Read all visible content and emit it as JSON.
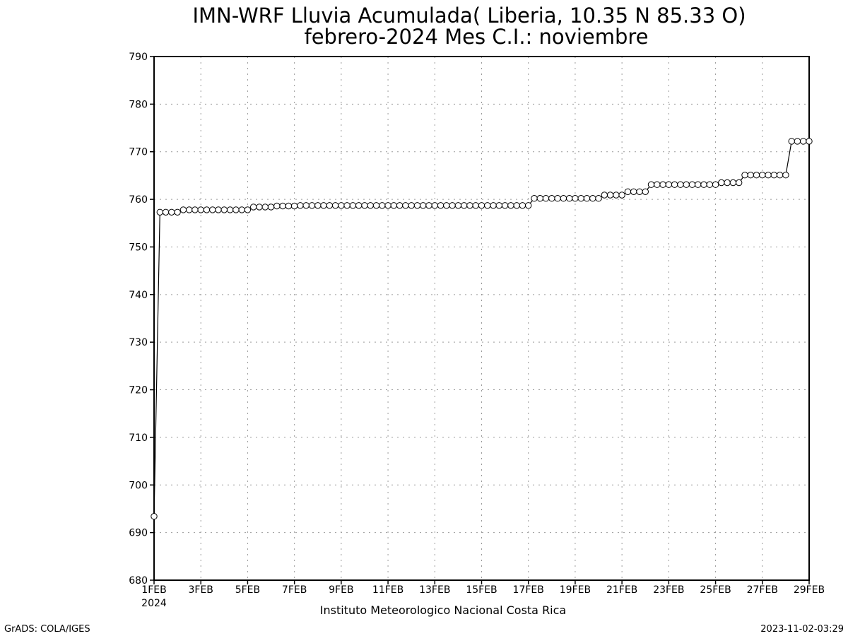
{
  "chart_data": {
    "type": "line",
    "title": "IMN-WRF  Lluvia Acumulada( Liberia, 10.35  N 85.33  O)",
    "subtitle": "febrero-2024 Mes C.I.: noviembre",
    "xlabel": "",
    "ylabel": "",
    "x_range": [
      "2024-02-01",
      "2024-02-29"
    ],
    "ylim": [
      680,
      790
    ],
    "y_ticks": [
      680,
      690,
      700,
      710,
      720,
      730,
      740,
      750,
      760,
      770,
      780,
      790
    ],
    "x_ticks": [
      {
        "date": "2024-02-01",
        "label": "1FEB"
      },
      {
        "date": "2024-02-03",
        "label": "3FEB"
      },
      {
        "date": "2024-02-05",
        "label": "5FEB"
      },
      {
        "date": "2024-02-07",
        "label": "7FEB"
      },
      {
        "date": "2024-02-09",
        "label": "9FEB"
      },
      {
        "date": "2024-02-11",
        "label": "11FEB"
      },
      {
        "date": "2024-02-13",
        "label": "13FEB"
      },
      {
        "date": "2024-02-15",
        "label": "15FEB"
      },
      {
        "date": "2024-02-17",
        "label": "17FEB"
      },
      {
        "date": "2024-02-19",
        "label": "19FEB"
      },
      {
        "date": "2024-02-21",
        "label": "21FEB"
      },
      {
        "date": "2024-02-23",
        "label": "23FEB"
      },
      {
        "date": "2024-02-25",
        "label": "25FEB"
      },
      {
        "date": "2024-02-27",
        "label": "27FEB"
      },
      {
        "date": "2024-02-29",
        "label": "29FEB"
      }
    ],
    "year_label": "2024",
    "grid": true,
    "marker": "open-circle",
    "line_color": "#000000",
    "series": [
      {
        "points": [
          {
            "x": "2024-02-01 00:00",
            "y": 693.4
          },
          {
            "x": "2024-02-01 06:00",
            "y": 757.3
          },
          {
            "x": "2024-02-01 12:00",
            "y": 757.3
          },
          {
            "x": "2024-02-01 18:00",
            "y": 757.3
          },
          {
            "x": "2024-02-02 00:00",
            "y": 757.3
          },
          {
            "x": "2024-02-02 06:00",
            "y": 757.8
          },
          {
            "x": "2024-02-02 12:00",
            "y": 757.8
          },
          {
            "x": "2024-02-02 18:00",
            "y": 757.8
          },
          {
            "x": "2024-02-03 00:00",
            "y": 757.8
          },
          {
            "x": "2024-02-03 06:00",
            "y": 757.8
          },
          {
            "x": "2024-02-03 12:00",
            "y": 757.8
          },
          {
            "x": "2024-02-03 18:00",
            "y": 757.8
          },
          {
            "x": "2024-02-04 00:00",
            "y": 757.8
          },
          {
            "x": "2024-02-04 06:00",
            "y": 757.8
          },
          {
            "x": "2024-02-04 12:00",
            "y": 757.8
          },
          {
            "x": "2024-02-04 18:00",
            "y": 757.8
          },
          {
            "x": "2024-02-05 00:00",
            "y": 757.8
          },
          {
            "x": "2024-02-05 06:00",
            "y": 758.4
          },
          {
            "x": "2024-02-05 12:00",
            "y": 758.4
          },
          {
            "x": "2024-02-05 18:00",
            "y": 758.4
          },
          {
            "x": "2024-02-06 00:00",
            "y": 758.4
          },
          {
            "x": "2024-02-06 06:00",
            "y": 758.6
          },
          {
            "x": "2024-02-06 12:00",
            "y": 758.6
          },
          {
            "x": "2024-02-06 18:00",
            "y": 758.6
          },
          {
            "x": "2024-02-07 00:00",
            "y": 758.6
          },
          {
            "x": "2024-02-07 06:00",
            "y": 758.7
          },
          {
            "x": "2024-02-07 12:00",
            "y": 758.7
          },
          {
            "x": "2024-02-07 18:00",
            "y": 758.7
          },
          {
            "x": "2024-02-08 00:00",
            "y": 758.7
          },
          {
            "x": "2024-02-08 06:00",
            "y": 758.7
          },
          {
            "x": "2024-02-08 12:00",
            "y": 758.7
          },
          {
            "x": "2024-02-08 18:00",
            "y": 758.7
          },
          {
            "x": "2024-02-09 00:00",
            "y": 758.7
          },
          {
            "x": "2024-02-09 06:00",
            "y": 758.7
          },
          {
            "x": "2024-02-09 12:00",
            "y": 758.7
          },
          {
            "x": "2024-02-09 18:00",
            "y": 758.7
          },
          {
            "x": "2024-02-10 00:00",
            "y": 758.7
          },
          {
            "x": "2024-02-10 06:00",
            "y": 758.7
          },
          {
            "x": "2024-02-10 12:00",
            "y": 758.7
          },
          {
            "x": "2024-02-10 18:00",
            "y": 758.7
          },
          {
            "x": "2024-02-11 00:00",
            "y": 758.7
          },
          {
            "x": "2024-02-11 06:00",
            "y": 758.7
          },
          {
            "x": "2024-02-11 12:00",
            "y": 758.7
          },
          {
            "x": "2024-02-11 18:00",
            "y": 758.7
          },
          {
            "x": "2024-02-12 00:00",
            "y": 758.7
          },
          {
            "x": "2024-02-12 06:00",
            "y": 758.7
          },
          {
            "x": "2024-02-12 12:00",
            "y": 758.7
          },
          {
            "x": "2024-02-12 18:00",
            "y": 758.7
          },
          {
            "x": "2024-02-13 00:00",
            "y": 758.7
          },
          {
            "x": "2024-02-13 06:00",
            "y": 758.7
          },
          {
            "x": "2024-02-13 12:00",
            "y": 758.7
          },
          {
            "x": "2024-02-13 18:00",
            "y": 758.7
          },
          {
            "x": "2024-02-14 00:00",
            "y": 758.7
          },
          {
            "x": "2024-02-14 06:00",
            "y": 758.7
          },
          {
            "x": "2024-02-14 12:00",
            "y": 758.7
          },
          {
            "x": "2024-02-14 18:00",
            "y": 758.7
          },
          {
            "x": "2024-02-15 00:00",
            "y": 758.7
          },
          {
            "x": "2024-02-15 06:00",
            "y": 758.7
          },
          {
            "x": "2024-02-15 12:00",
            "y": 758.7
          },
          {
            "x": "2024-02-15 18:00",
            "y": 758.7
          },
          {
            "x": "2024-02-16 00:00",
            "y": 758.7
          },
          {
            "x": "2024-02-16 06:00",
            "y": 758.7
          },
          {
            "x": "2024-02-16 12:00",
            "y": 758.7
          },
          {
            "x": "2024-02-16 18:00",
            "y": 758.7
          },
          {
            "x": "2024-02-17 00:00",
            "y": 758.7
          },
          {
            "x": "2024-02-17 06:00",
            "y": 760.2
          },
          {
            "x": "2024-02-17 12:00",
            "y": 760.2
          },
          {
            "x": "2024-02-17 18:00",
            "y": 760.2
          },
          {
            "x": "2024-02-18 00:00",
            "y": 760.2
          },
          {
            "x": "2024-02-18 06:00",
            "y": 760.2
          },
          {
            "x": "2024-02-18 12:00",
            "y": 760.2
          },
          {
            "x": "2024-02-18 18:00",
            "y": 760.2
          },
          {
            "x": "2024-02-19 00:00",
            "y": 760.2
          },
          {
            "x": "2024-02-19 06:00",
            "y": 760.2
          },
          {
            "x": "2024-02-19 12:00",
            "y": 760.2
          },
          {
            "x": "2024-02-19 18:00",
            "y": 760.2
          },
          {
            "x": "2024-02-20 00:00",
            "y": 760.2
          },
          {
            "x": "2024-02-20 06:00",
            "y": 760.9
          },
          {
            "x": "2024-02-20 12:00",
            "y": 760.9
          },
          {
            "x": "2024-02-20 18:00",
            "y": 760.9
          },
          {
            "x": "2024-02-21 00:00",
            "y": 760.9
          },
          {
            "x": "2024-02-21 06:00",
            "y": 761.6
          },
          {
            "x": "2024-02-21 12:00",
            "y": 761.6
          },
          {
            "x": "2024-02-21 18:00",
            "y": 761.6
          },
          {
            "x": "2024-02-22 00:00",
            "y": 761.6
          },
          {
            "x": "2024-02-22 06:00",
            "y": 763.1
          },
          {
            "x": "2024-02-22 12:00",
            "y": 763.1
          },
          {
            "x": "2024-02-22 18:00",
            "y": 763.1
          },
          {
            "x": "2024-02-23 00:00",
            "y": 763.1
          },
          {
            "x": "2024-02-23 06:00",
            "y": 763.1
          },
          {
            "x": "2024-02-23 12:00",
            "y": 763.1
          },
          {
            "x": "2024-02-23 18:00",
            "y": 763.1
          },
          {
            "x": "2024-02-24 00:00",
            "y": 763.1
          },
          {
            "x": "2024-02-24 06:00",
            "y": 763.1
          },
          {
            "x": "2024-02-24 12:00",
            "y": 763.1
          },
          {
            "x": "2024-02-24 18:00",
            "y": 763.1
          },
          {
            "x": "2024-02-25 00:00",
            "y": 763.1
          },
          {
            "x": "2024-02-25 06:00",
            "y": 763.5
          },
          {
            "x": "2024-02-25 12:00",
            "y": 763.5
          },
          {
            "x": "2024-02-25 18:00",
            "y": 763.5
          },
          {
            "x": "2024-02-26 00:00",
            "y": 763.5
          },
          {
            "x": "2024-02-26 06:00",
            "y": 765.1
          },
          {
            "x": "2024-02-26 12:00",
            "y": 765.1
          },
          {
            "x": "2024-02-26 18:00",
            "y": 765.1
          },
          {
            "x": "2024-02-27 00:00",
            "y": 765.1
          },
          {
            "x": "2024-02-27 06:00",
            "y": 765.1
          },
          {
            "x": "2024-02-27 12:00",
            "y": 765.1
          },
          {
            "x": "2024-02-27 18:00",
            "y": 765.1
          },
          {
            "x": "2024-02-28 00:00",
            "y": 765.1
          },
          {
            "x": "2024-02-28 06:00",
            "y": 772.2
          },
          {
            "x": "2024-02-28 12:00",
            "y": 772.2
          },
          {
            "x": "2024-02-28 18:00",
            "y": 772.2
          },
          {
            "x": "2024-02-29 00:00",
            "y": 772.2
          }
        ]
      }
    ]
  },
  "footer": {
    "institution": "Instituto Meteorologico Nacional Costa Rica",
    "software_credit": "GrADS: COLA/IGES",
    "timestamp": "2023-11-02-03:29"
  }
}
